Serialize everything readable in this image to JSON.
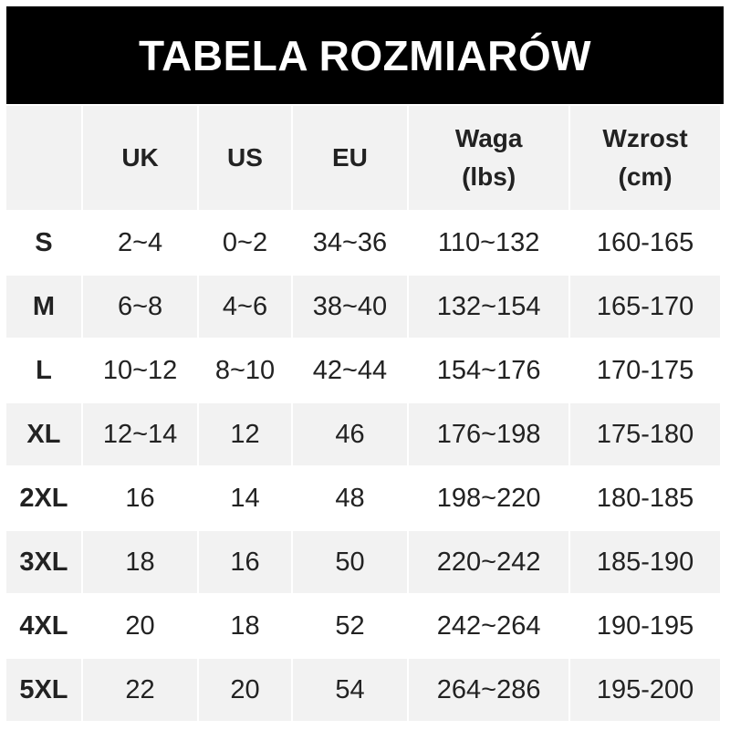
{
  "title": "TABELA ROZMIARÓW",
  "headers": [
    "",
    "UK",
    "US",
    "EU",
    "Waga\n(lbs)",
    "Wzrost\n(cm)"
  ],
  "rows": [
    [
      "S",
      "2~4",
      "0~2",
      "34~36",
      "110~132",
      "160-165"
    ],
    [
      "M",
      "6~8",
      "4~6",
      "38~40",
      "132~154",
      "165-170"
    ],
    [
      "L",
      "10~12",
      "8~10",
      "42~44",
      "154~176",
      "170-175"
    ],
    [
      "XL",
      "12~14",
      "12",
      "46",
      "176~198",
      "175-180"
    ],
    [
      "2XL",
      "16",
      "14",
      "48",
      "198~220",
      "180-185"
    ],
    [
      "3XL",
      "18",
      "16",
      "50",
      "220~242",
      "185-190"
    ],
    [
      "4XL",
      "20",
      "18",
      "52",
      "242~264",
      "190-195"
    ],
    [
      "5XL",
      "22",
      "20",
      "54",
      "264~286",
      "195-200"
    ]
  ],
  "colors": {
    "header_bg": "#000000",
    "alt_row": "#f2f2f2"
  }
}
